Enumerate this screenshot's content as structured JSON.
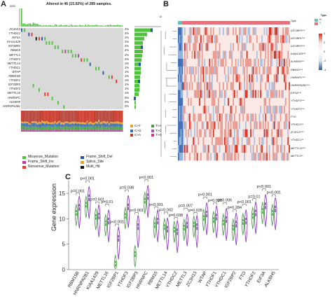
{
  "panels": {
    "a": "A",
    "b": "B",
    "c": "C"
  },
  "panel_a": {
    "title": "Altered in 46 (15.92%) of 289 samples.",
    "top_axis_max": "6000",
    "right_axis_max": "10",
    "genes": [
      "ZC3H13",
      "YTHDC2",
      "EIF3A",
      "KIAA1429",
      "IGF2BP2",
      "RBM15",
      "METTL3",
      "YTHDF2",
      "METTL14",
      "YTHDC1",
      "WTAP",
      "RBM15B",
      "YTHDF1",
      "IGF2BP3",
      "YTHDF3",
      "METTL16",
      "HNRNPC",
      "ALKBH5",
      "HNRNPA2B1"
    ],
    "percents": [
      "4%",
      "2%",
      "2%",
      "2%",
      "2%",
      "2%",
      "2%",
      "2%",
      "1%",
      "1%",
      "1%",
      "1%",
      "1%",
      "1%",
      "1%",
      "1%",
      "0%",
      "0%",
      "0%"
    ],
    "snv_legend": [
      "C>T",
      "T>A",
      "C>G",
      "T>C",
      "C>A",
      "T>G"
    ],
    "snv_colors": [
      "#e6a42b",
      "#4d9d4a",
      "#3a6db3",
      "#9b59b6",
      "#c0392b",
      "#d63384"
    ],
    "mut_legend": [
      "Missense_Mutation",
      "Frame_Shift_Del",
      "Frame_Shift_Ins",
      "Splice_Site",
      "Nonsense_Mutation",
      "Multi_Hit"
    ],
    "mut_colors": [
      "#4ec43a",
      "#1f5aa6",
      "#b23fa0",
      "#f3a323",
      "#e03c31",
      "#111111"
    ]
  },
  "panel_b": {
    "genes": [
      "IGF2BP3***",
      "IGF2BP1***",
      "IGF2BP2***",
      "KIAA1429***",
      "ALKBH5***",
      "RBM15***",
      "HNRNPC***",
      "HNRNPA2B1***",
      "EIF3A***",
      "YTHDF3***",
      "YTHDF1***",
      "FTO",
      "YTHDC2**",
      "ZC3H13***",
      "YTHDC1**",
      "METTL14***",
      "METTL3**"
    ],
    "legend_title": "Type",
    "legend_items": [
      "N",
      "T"
    ],
    "legend_colors": [
      "#5fc3c0",
      "#e8707a"
    ],
    "scale_labels": [
      "4",
      "2",
      "0",
      "-2",
      "-4"
    ],
    "type_label": "Type"
  },
  "chart_data": {
    "type": "violin",
    "title": "",
    "xlabel": "",
    "ylabel": "Gene expression",
    "ylim": [
      0,
      17.5
    ],
    "yticks": [
      0,
      5,
      10,
      15
    ],
    "categories": [
      "RBM15B",
      "HNRNPA2B1",
      "KIAA1429",
      "METTL16",
      "IGF2BP1",
      "YTHDF3",
      "IGF2BP3",
      "HNRNPC",
      "RBM15",
      "METTL14",
      "YTHDC2",
      "METTL3",
      "ZC3H13",
      "WTAP",
      "YTHDF1",
      "YTHDC1",
      "IGF2BP2",
      "FTO",
      "YTHDF2",
      "EIF3A",
      "ALKBH5"
    ],
    "p_labels": [
      "p=0.001",
      "p<0.001",
      "p=0.601",
      "p=0.01",
      "p<0.001",
      "p=0.038",
      "p<0.001",
      "p<0.001",
      "p<0.001",
      "p=0.002",
      "p=0.038",
      "p=0.007",
      "p=0.026",
      "p<0.001",
      "p=0.005",
      "p=0.006",
      "p=0.284",
      "p<0.001",
      "p=0.01",
      "p<0.001",
      "p<0.001"
    ],
    "normal_median": [
      11.2,
      12.8,
      10.4,
      9.2,
      1.2,
      10.6,
      3.1,
      13.6,
      8.8,
      8.4,
      7.9,
      8.3,
      8.9,
      10.2,
      9.8,
      9.3,
      8.3,
      9.4,
      10.6,
      11.6,
      11.2
    ],
    "tumor_median": [
      12.3,
      14.2,
      10.6,
      9.6,
      6.2,
      12.4,
      8.5,
      14.4,
      9.6,
      8.0,
      7.5,
      8.8,
      8.5,
      11.0,
      10.4,
      9.9,
      9.0,
      9.6,
      11.2,
      12.6,
      12.0
    ],
    "series_colors": {
      "normal": "#4aa84a",
      "tumor": "#8a3fb8"
    }
  }
}
